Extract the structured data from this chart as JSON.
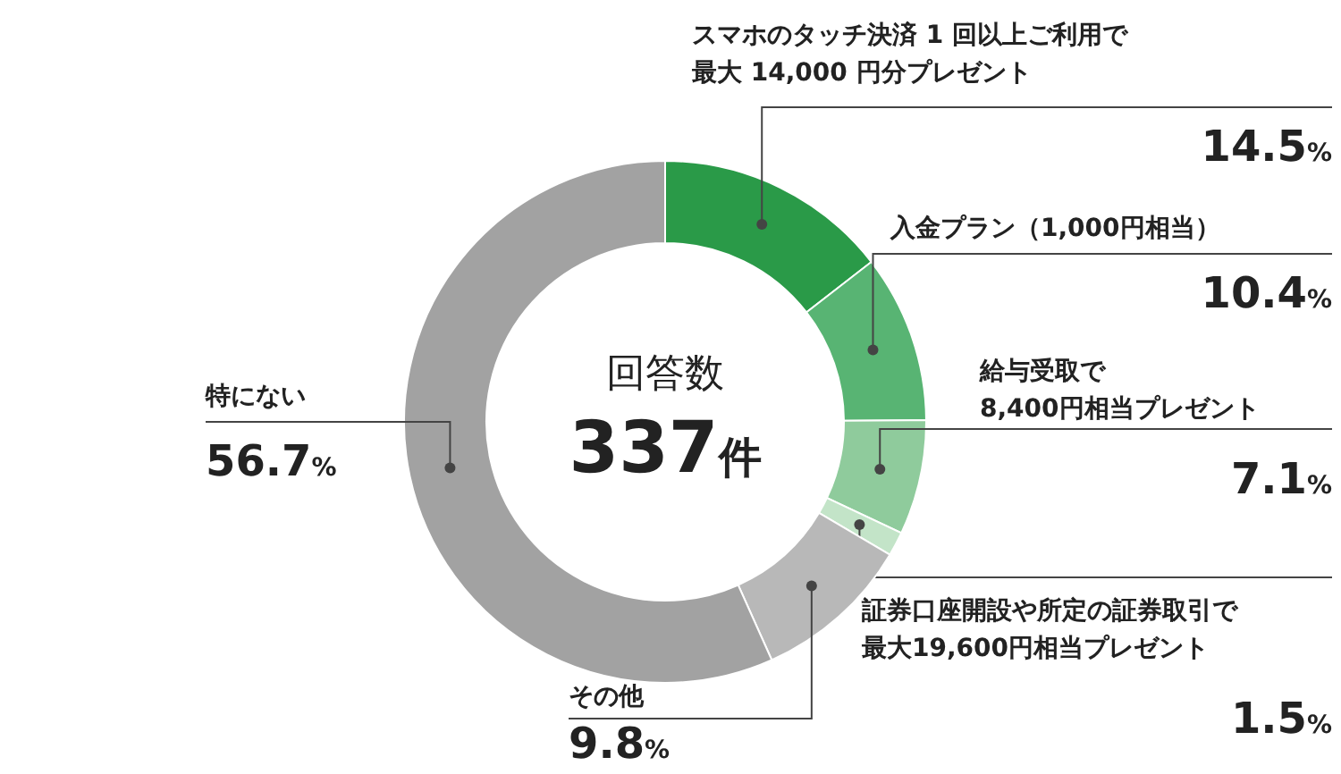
{
  "chart_data": {
    "type": "donut",
    "categories": [
      "スマホのタッチ決済 1 回以上ご利用で最大 14,000 円分プレゼント",
      "入金プラン（1,000円相当）",
      "給与受取で8,400円相当プレゼント",
      "証券口座開設や所定の証券取引で最大19,600円相当プレゼント",
      "その他",
      "特にない"
    ],
    "values": [
      14.5,
      10.4,
      7.1,
      1.5,
      9.8,
      56.7
    ],
    "value_labels": [
      "14.5%",
      "10.4%",
      "7.1%",
      "1.5%",
      "9.8%",
      "56.7%"
    ],
    "colors": [
      "#2a9a48",
      "#58b473",
      "#8fcb9c",
      "#c3e4c8",
      "#b8b8b8",
      "#a2a2a2"
    ],
    "annotations": [
      "回答数",
      "337件"
    ]
  }
}
